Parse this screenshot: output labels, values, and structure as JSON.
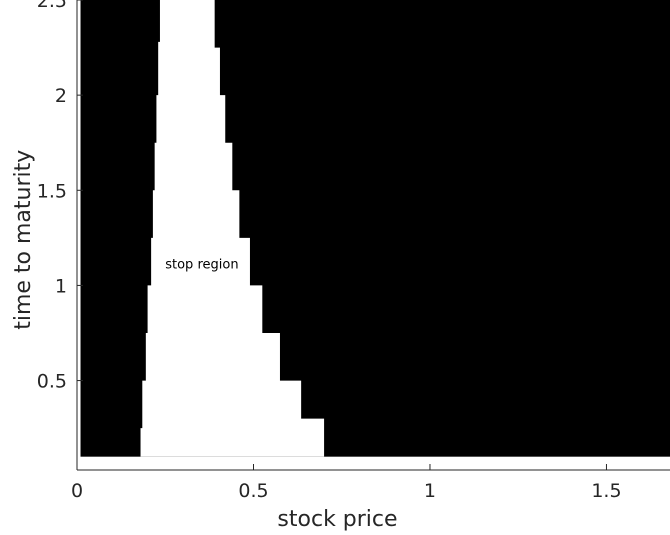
{
  "chart_data": {
    "type": "heatmap",
    "title": "",
    "xlabel": "stock price",
    "ylabel": "time to maturity",
    "xlim": [
      0,
      1.68
    ],
    "ylim": [
      0.03,
      2.5
    ],
    "xticks": [
      0,
      0.5,
      1,
      1.5
    ],
    "xtick_labels": [
      "0",
      "0.5",
      "1",
      "1.5"
    ],
    "yticks": [
      0.5,
      1,
      1.5,
      2,
      2.5
    ],
    "ytick_labels": [
      "0.5",
      "1",
      "1.5",
      "2",
      "2.5"
    ],
    "grid": false,
    "colors": {
      "continue_region": "#000000",
      "stop_region": "#ffffff",
      "axis": "#262626"
    },
    "data_extent": {
      "x": [
        0.01,
        1.68
      ],
      "y": [
        0.1,
        2.5
      ]
    },
    "annotations": [
      {
        "text": "stop region",
        "x": 0.25,
        "y": 1.09
      }
    ],
    "stop_region_left_boundary": [
      {
        "t": 2.5,
        "s": 0.24
      },
      {
        "t": 2.28,
        "s": 0.235
      },
      {
        "t": 2.0,
        "s": 0.23
      },
      {
        "t": 1.75,
        "s": 0.225
      },
      {
        "t": 1.5,
        "s": 0.22
      },
      {
        "t": 1.25,
        "s": 0.215
      },
      {
        "t": 1.0,
        "s": 0.21
      },
      {
        "t": 0.75,
        "s": 0.2
      },
      {
        "t": 0.5,
        "s": 0.195
      },
      {
        "t": 0.25,
        "s": 0.185
      },
      {
        "t": 0.1,
        "s": 0.18
      }
    ],
    "stop_region_right_boundary": [
      {
        "t": 2.5,
        "s": 0.39
      },
      {
        "t": 2.25,
        "s": 0.405
      },
      {
        "t": 2.0,
        "s": 0.42
      },
      {
        "t": 1.75,
        "s": 0.44
      },
      {
        "t": 1.5,
        "s": 0.46
      },
      {
        "t": 1.25,
        "s": 0.49
      },
      {
        "t": 1.0,
        "s": 0.525
      },
      {
        "t": 0.75,
        "s": 0.575
      },
      {
        "t": 0.5,
        "s": 0.635
      },
      {
        "t": 0.3,
        "s": 0.7
      },
      {
        "t": 0.1,
        "s": 0.77
      }
    ]
  }
}
